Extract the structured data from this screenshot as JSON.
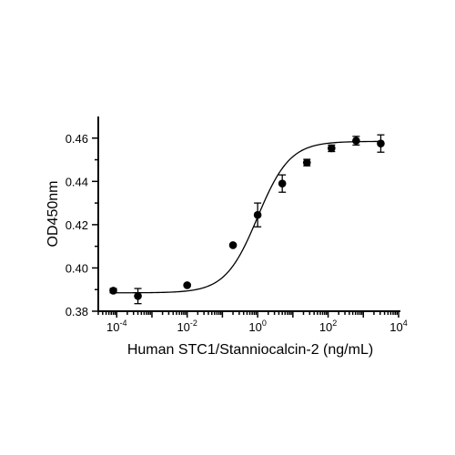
{
  "chart_data": {
    "type": "scatter",
    "title": "",
    "xlabel": "Human STC1/Stanniocalcin-2 (ng/mL)",
    "ylabel": "OD450nm",
    "xscale": "log",
    "xlim": [
      3e-05,
      10000
    ],
    "ylim": [
      0.38,
      0.47
    ],
    "x_ticks": [
      {
        "value": 0.0001,
        "base": "10",
        "exp": "-4"
      },
      {
        "value": 0.01,
        "base": "10",
        "exp": "-2"
      },
      {
        "value": 1,
        "base": "10",
        "exp": "0"
      },
      {
        "value": 100,
        "base": "10",
        "exp": "2"
      },
      {
        "value": 10000,
        "base": "10",
        "exp": "4"
      }
    ],
    "y_ticks": [
      "0.38",
      "0.40",
      "0.42",
      "0.44",
      "0.46"
    ],
    "grid": false,
    "series": [
      {
        "points": [
          {
            "x": 8e-05,
            "y": 0.3895,
            "err": 0.001
          },
          {
            "x": 0.0004,
            "y": 0.387,
            "err": 0.0035
          },
          {
            "x": 0.01,
            "y": 0.392,
            "err": 0.0005
          },
          {
            "x": 0.2,
            "y": 0.4105,
            "err": 0.0005
          },
          {
            "x": 1.0,
            "y": 0.4245,
            "err": 0.0055
          },
          {
            "x": 5.0,
            "y": 0.439,
            "err": 0.004
          },
          {
            "x": 25,
            "y": 0.4487,
            "err": 0.0015
          },
          {
            "x": 125,
            "y": 0.4553,
            "err": 0.0015
          },
          {
            "x": 625,
            "y": 0.4588,
            "err": 0.002
          },
          {
            "x": 3125,
            "y": 0.4575,
            "err": 0.004
          }
        ]
      }
    ],
    "fit": {
      "model": "4PL",
      "bottom": 0.3885,
      "top": 0.4585,
      "ec50": 1.0,
      "hill": 0.95
    }
  }
}
